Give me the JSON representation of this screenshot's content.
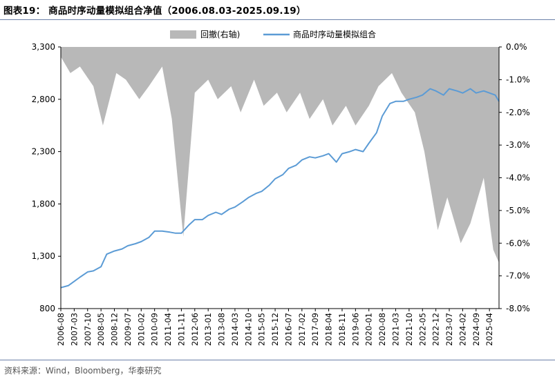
{
  "header": {
    "title": "图表19：  商品时序动量模拟组合净值（2006.08.03-2025.09.19）"
  },
  "footer": {
    "source": "资料来源：Wind，Bloomberg，华泰研究"
  },
  "chart_data": {
    "type": "line+area",
    "title": "图表19：  商品时序动量模拟组合净值（2006.08.03-2025.09.19）",
    "legend_position": "top-center",
    "grid": false,
    "series": [
      {
        "name": "回撤(右轴)",
        "type": "area",
        "axis": "right",
        "color": "#b8b8b8",
        "x": [
          "2006-08",
          "2007-01",
          "2007-06",
          "2008-01",
          "2008-06",
          "2009-01",
          "2009-06",
          "2010-01",
          "2010-06",
          "2011-01",
          "2011-06",
          "2011-12",
          "2012-06",
          "2013-01",
          "2013-06",
          "2014-01",
          "2014-06",
          "2015-01",
          "2015-06",
          "2016-01",
          "2016-06",
          "2017-01",
          "2017-06",
          "2018-01",
          "2018-06",
          "2019-01",
          "2019-06",
          "2020-01",
          "2020-06",
          "2021-01",
          "2021-06",
          "2022-01",
          "2022-06",
          "2023-01",
          "2023-06",
          "2024-01",
          "2024-06",
          "2025-01",
          "2025-06",
          "2025-09"
        ],
        "values": [
          -0.3,
          -0.8,
          -0.6,
          -1.2,
          -2.4,
          -0.8,
          -1.0,
          -1.6,
          -1.2,
          -0.6,
          -2.2,
          -5.8,
          -1.4,
          -1.0,
          -1.6,
          -1.2,
          -2.0,
          -1.0,
          -1.8,
          -1.4,
          -2.0,
          -1.4,
          -2.2,
          -1.6,
          -2.4,
          -1.8,
          -2.4,
          -1.8,
          -1.2,
          -0.8,
          -1.4,
          -2.0,
          -3.2,
          -5.6,
          -4.6,
          -6.0,
          -5.4,
          -4.0,
          -6.2,
          -6.6
        ]
      },
      {
        "name": "商品时序动量模拟组合",
        "type": "line",
        "axis": "left",
        "color": "#5b9bd5",
        "x": [
          "2006-08",
          "2006-12",
          "2007-03",
          "2007-06",
          "2007-10",
          "2008-01",
          "2008-05",
          "2008-08",
          "2008-12",
          "2009-04",
          "2009-07",
          "2009-11",
          "2010-02",
          "2010-06",
          "2010-09",
          "2011-01",
          "2011-05",
          "2011-08",
          "2011-11",
          "2012-03",
          "2012-06",
          "2012-10",
          "2013-01",
          "2013-05",
          "2013-08",
          "2013-12",
          "2014-03",
          "2014-07",
          "2014-10",
          "2015-02",
          "2015-05",
          "2015-09",
          "2015-12",
          "2016-04",
          "2016-07",
          "2016-11",
          "2017-02",
          "2017-06",
          "2017-09",
          "2018-01",
          "2018-04",
          "2018-08",
          "2018-11",
          "2019-03",
          "2019-06",
          "2019-10",
          "2020-01",
          "2020-05",
          "2020-08",
          "2020-12",
          "2021-03",
          "2021-07",
          "2021-10",
          "2022-02",
          "2022-05",
          "2022-09",
          "2022-12",
          "2023-04",
          "2023-07",
          "2023-11",
          "2024-02",
          "2024-06",
          "2024-09",
          "2025-01",
          "2025-04",
          "2025-07",
          "2025-09"
        ],
        "values": [
          1000,
          1020,
          1060,
          1100,
          1150,
          1160,
          1200,
          1320,
          1350,
          1370,
          1400,
          1420,
          1440,
          1480,
          1540,
          1540,
          1530,
          1520,
          1520,
          1600,
          1650,
          1650,
          1690,
          1720,
          1700,
          1750,
          1770,
          1820,
          1860,
          1900,
          1920,
          1980,
          2040,
          2080,
          2140,
          2170,
          2220,
          2250,
          2240,
          2260,
          2280,
          2200,
          2280,
          2300,
          2320,
          2300,
          2380,
          2480,
          2640,
          2760,
          2780,
          2780,
          2800,
          2820,
          2840,
          2900,
          2880,
          2840,
          2900,
          2880,
          2860,
          2900,
          2860,
          2880,
          2860,
          2840,
          2780
        ]
      }
    ],
    "x_ticks": [
      "2006-08",
      "2007-03",
      "2007-10",
      "2008-05",
      "2008-12",
      "2009-07",
      "2010-02",
      "2010-09",
      "2011-04",
      "2011-11",
      "2012-06",
      "2013-01",
      "2013-08",
      "2014-03",
      "2014-10",
      "2015-05",
      "2015-12",
      "2016-07",
      "2017-02",
      "2017-09",
      "2018-04",
      "2018-11",
      "2019-06",
      "2020-01",
      "2020-08",
      "2021-03",
      "2021-10",
      "2022-05",
      "2022-12",
      "2023-07",
      "2024-02",
      "2024-09",
      "2025-04"
    ],
    "y_left": {
      "min": 800,
      "max": 3300,
      "ticks": [
        "800",
        "1,300",
        "1,800",
        "2,300",
        "2,800",
        "3,300"
      ]
    },
    "y_right": {
      "min": -8.0,
      "max": 0.0,
      "ticks": [
        "0.0%",
        "-1.0%",
        "-2.0%",
        "-3.0%",
        "-4.0%",
        "-5.0%",
        "-6.0%",
        "-7.0%",
        "-8.0%"
      ]
    }
  }
}
